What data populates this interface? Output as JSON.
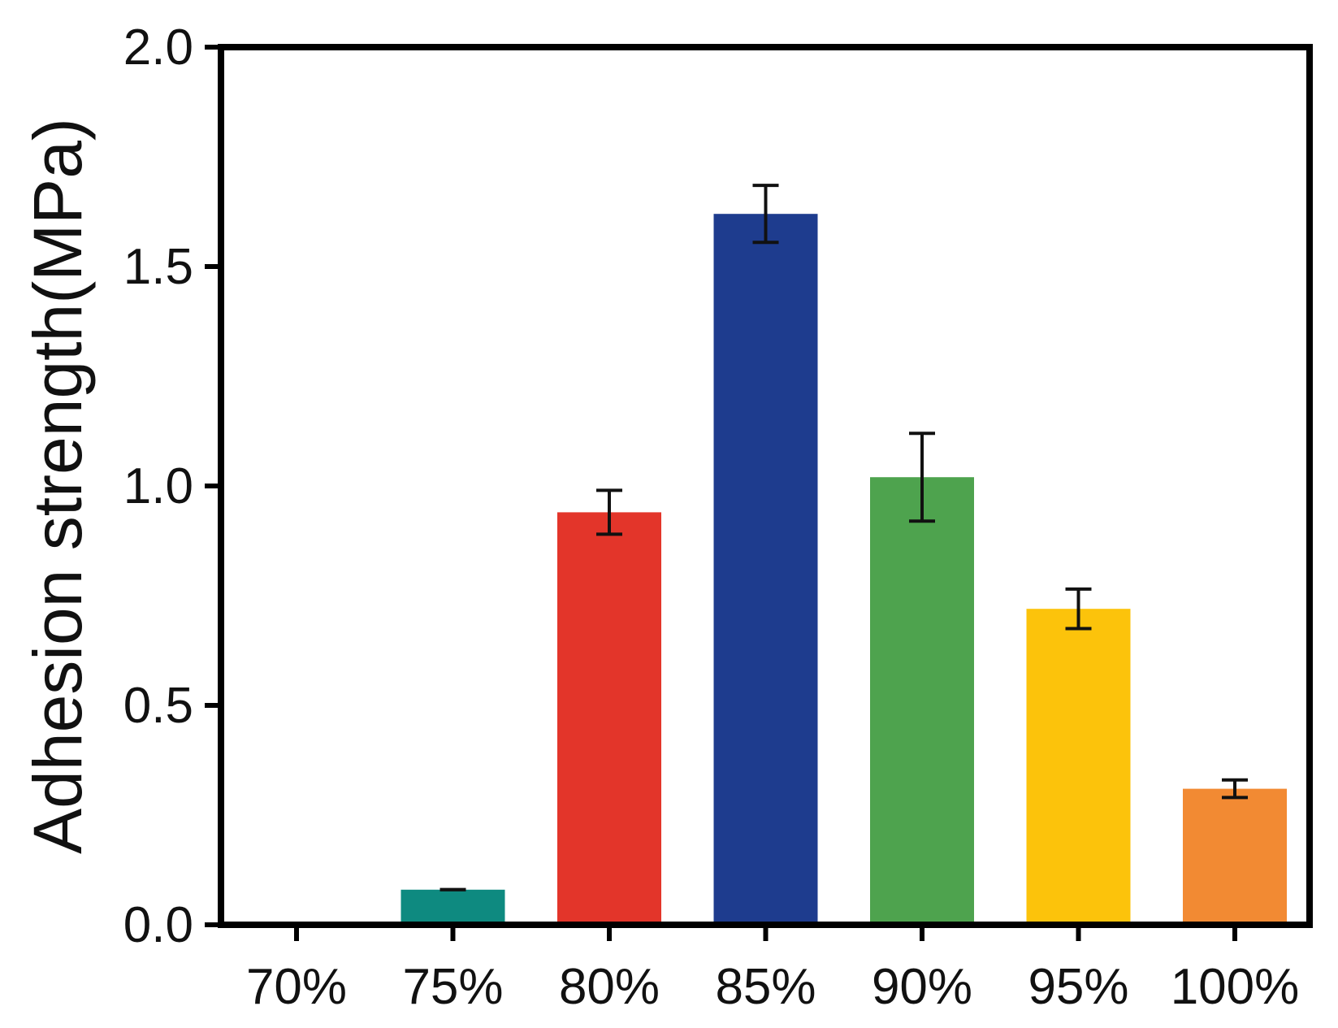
{
  "chart_data": {
    "type": "bar",
    "title": "",
    "xlabel": "",
    "ylabel": "Adhesion strength(MPa)",
    "categories": [
      "70%",
      "75%",
      "80%",
      "85%",
      "90%",
      "95%",
      "100%"
    ],
    "values": [
      0.0,
      0.08,
      0.94,
      1.62,
      1.02,
      0.72,
      0.31
    ],
    "errors": [
      0.0,
      0.0,
      0.05,
      0.065,
      0.1,
      0.045,
      0.02
    ],
    "colors": [
      "#0E8A80",
      "#0E8A80",
      "#E3352A",
      "#1E3C8E",
      "#4EA34E",
      "#FCC30B",
      "#F28A33"
    ],
    "ylim": [
      0,
      2.0
    ],
    "yticks": [
      0.0,
      0.5,
      1.0,
      1.5,
      2.0
    ],
    "ytick_labels": [
      "0.0",
      "0.5",
      "1.0",
      "1.5",
      "2.0"
    ],
    "grid": false,
    "legend": "none"
  }
}
